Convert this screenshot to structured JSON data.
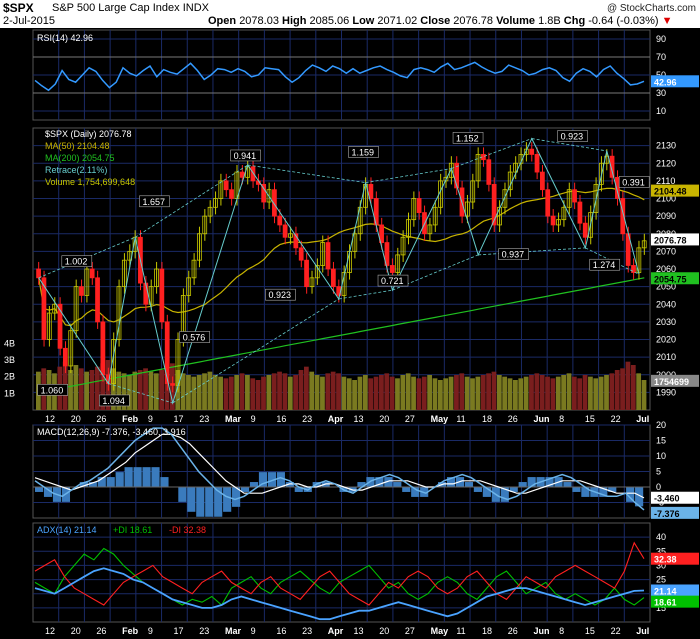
{
  "header": {
    "symbol": "$SPX",
    "name": "S&P 500 Large Cap Index",
    "exchange": "INDX",
    "date": "2-Jul-2015",
    "open_label": "Open",
    "open": "2078.03",
    "high_label": "High",
    "high": "2085.06",
    "low_label": "Low",
    "low": "2071.02",
    "close_label": "Close",
    "close": "2076.78",
    "volume_label": "Volume",
    "volume": "1.8B",
    "chg_label": "Chg",
    "chg": "-0.64 (-0.03%)",
    "watermark": "@ StockCharts.com"
  },
  "colors": {
    "up": "#c8c800",
    "down": "#ff2020",
    "ma50": "#c8b400",
    "ma200": "#20c020",
    "rsi": "#3399ff",
    "macd": "#6bb3e8",
    "signal": "#ffffff",
    "histogram": "#3a7bbd",
    "adx": "#4aa3ff",
    "plusdi": "#00c000",
    "minusdi": "#ff2020",
    "trend": "#66cccc",
    "grid": "#1a2a66"
  },
  "chart_data": [
    {
      "type": "line",
      "panel": "rsi",
      "legend": "RSI(14) 42.96",
      "last_label": "42.96",
      "ylim": [
        0,
        100
      ],
      "y_ticks": [
        10,
        30,
        50,
        70,
        90
      ],
      "series": [
        {
          "values": [
            44,
            38,
            33,
            40,
            55,
            45,
            42,
            50,
            58,
            54,
            44,
            36,
            42,
            58,
            52,
            49,
            55,
            60,
            48,
            56,
            53,
            51,
            57,
            63,
            55,
            45,
            50,
            57,
            56,
            53,
            57,
            54,
            48,
            50,
            58,
            57,
            56,
            48,
            42,
            47,
            55,
            61,
            58,
            54,
            60,
            57,
            52,
            57,
            52,
            55,
            58,
            60,
            56,
            53,
            49,
            47,
            56,
            58,
            56,
            53,
            59,
            63,
            56,
            58,
            61,
            64,
            59,
            55,
            52,
            54,
            61,
            58,
            55,
            50,
            52,
            56,
            58,
            55,
            47,
            43,
            52,
            57,
            54,
            48,
            56,
            60,
            52,
            46,
            39,
            40,
            43
          ]
        }
      ]
    },
    {
      "type": "candlestick",
      "panel": "price",
      "legend": {
        "price": "$SPX (Daily) 2076.78",
        "ma50": "MA(50) 2104.48",
        "ma200": "MA(200) 2054.75",
        "retrace": "Retrace(2.11%)",
        "volume": "Volume 1,754,699,648"
      },
      "ylim": [
        1980,
        2140
      ],
      "y_ticks": [
        1990,
        2000,
        2010,
        2020,
        2030,
        2040,
        2050,
        2060,
        2070,
        2080,
        2090,
        2100,
        2110,
        2120,
        2130
      ],
      "price_boxes": {
        "ma50": "2104.48",
        "close": "2076.78",
        "ma200": "2054.75",
        "volume": "1754699"
      },
      "volume_ticks": [
        "1B",
        "2B",
        "3B",
        "4B"
      ],
      "x_labels": [
        "12",
        "20",
        "26",
        "Feb",
        "9",
        "17",
        "23",
        "Mar",
        "9",
        "16",
        "23",
        "Apr",
        "13",
        "20",
        "27",
        "May",
        "11",
        "18",
        "26",
        "Jun",
        "8",
        "15",
        "22",
        "Jul"
      ],
      "close": [
        2055,
        2020,
        2035,
        2040,
        2015,
        2005,
        2025,
        2050,
        2045,
        2060,
        2055,
        2030,
        2000,
        1995,
        2020,
        2050,
        2065,
        2070,
        2078,
        2052,
        2040,
        2050,
        2060,
        2030,
        1995,
        1994,
        2020,
        2045,
        2055,
        2065,
        2080,
        2090,
        2095,
        2100,
        2110,
        2105,
        2100,
        2115,
        2112,
        2118,
        2110,
        2108,
        2098,
        2105,
        2090,
        2085,
        2078,
        2080,
        2072,
        2065,
        2050,
        2055,
        2062,
        2075,
        2060,
        2050,
        2045,
        2058,
        2070,
        2080,
        2095,
        2108,
        2100,
        2085,
        2075,
        2062,
        2058,
        2068,
        2078,
        2088,
        2100,
        2092,
        2080,
        2085,
        2095,
        2110,
        2112,
        2120,
        2106,
        2090,
        2098,
        2110,
        2125,
        2122,
        2108,
        2085,
        2095,
        2105,
        2115,
        2120,
        2125,
        2128,
        2125,
        2115,
        2105,
        2090,
        2085,
        2088,
        2095,
        2105,
        2098,
        2086,
        2078,
        2092,
        2108,
        2120,
        2124,
        2112,
        2100,
        2080,
        2062,
        2058,
        2072,
        2076
      ],
      "volume_billions": [
        2.3,
        2.5,
        2.4,
        2.2,
        2.6,
        2.9,
        2.4,
        2.7,
        2.5,
        2.3,
        2.4,
        2.6,
        2.8,
        3.0,
        2.5,
        2.3,
        2.2,
        2.1,
        2.3,
        2.4,
        2.5,
        2.3,
        2.2,
        2.4,
        2.6,
        2.8,
        2.4,
        2.2,
        2.1,
        2.0,
        2.1,
        2.2,
        2.3,
        2.1,
        2.0,
        1.9,
        2.0,
        2.1,
        2.2,
        2.1,
        1.9,
        1.8,
        2.0,
        2.1,
        2.2,
        2.3,
        2.2,
        2.0,
        2.1,
        2.4,
        2.6,
        2.3,
        2.1,
        2.0,
        2.2,
        2.3,
        2.2,
        2.0,
        1.9,
        1.8,
        2.0,
        2.1,
        1.9,
        2.0,
        2.1,
        2.2,
        2.0,
        1.9,
        2.1,
        2.2,
        2.0,
        1.9,
        2.0,
        2.1,
        1.9,
        1.8,
        1.9,
        2.0,
        2.1,
        2.2,
        2.0,
        1.9,
        2.0,
        2.1,
        2.2,
        2.3,
        2.1,
        2.0,
        1.9,
        1.8,
        1.9,
        2.0,
        2.1,
        2.2,
        2.1,
        2.0,
        1.9,
        2.0,
        2.1,
        2.2,
        2.0,
        1.9,
        2.1,
        2.0,
        1.9,
        2.0,
        2.1,
        2.2,
        2.4,
        2.5,
        2.9,
        2.7,
        2.2,
        1.8
      ],
      "zigzag": [
        {
          "i": 0,
          "v": 2055
        },
        {
          "i": 13,
          "v": 1995
        },
        {
          "i": 18,
          "v": 2078
        },
        {
          "i": 25,
          "v": 1984
        },
        {
          "i": 39,
          "v": 2119
        },
        {
          "i": 56,
          "v": 2043
        },
        {
          "i": 61,
          "v": 2109
        },
        {
          "i": 66,
          "v": 2048
        },
        {
          "i": 77,
          "v": 2117
        },
        {
          "i": 82,
          "v": 2068
        },
        {
          "i": 92,
          "v": 2134
        },
        {
          "i": 102,
          "v": 2072
        },
        {
          "i": 106,
          "v": 2127
        },
        {
          "i": 112,
          "v": 2057
        }
      ],
      "zigzag_labels": [
        {
          "text": "1.060",
          "i": 1,
          "v": 1990
        },
        {
          "text": "1.002",
          "i": 10,
          "v": 2063
        },
        {
          "text": "1.094",
          "i": 24,
          "v": 1984
        },
        {
          "text": "0.576",
          "i": 54,
          "v": 2020
        },
        {
          "text": "1.657",
          "i": 39,
          "v": 2097
        },
        {
          "text": "0.941",
          "i": 73,
          "v": 2123
        },
        {
          "text": "0.923",
          "i": 86,
          "v": 2044
        },
        {
          "text": "1.159",
          "i": 117,
          "v": 2125
        },
        {
          "text": "0.721",
          "i": 128,
          "v": 2052
        },
        {
          "text": "1.152",
          "i": 156,
          "v": 2133
        },
        {
          "text": "0.937",
          "i": 173,
          "v": 2067
        },
        {
          "text": "0.923",
          "i": 195,
          "v": 2134
        },
        {
          "text": "1.274",
          "i": 207,
          "v": 2061
        },
        {
          "text": "0.391",
          "i": 218,
          "v": 2108
        }
      ]
    },
    {
      "type": "line",
      "panel": "macd",
      "legend": "MACD(12,26,9) -7.376, -3.460, 3.916",
      "last_labels": [
        "-3.460",
        "-7.376"
      ],
      "ylim": [
        -10,
        20
      ],
      "y_ticks": [
        -5,
        0,
        5,
        10,
        15,
        20
      ],
      "series": [
        {
          "name": "MACD",
          "values": [
            2,
            0,
            -2,
            -3,
            -1,
            1,
            2,
            4,
            6,
            9,
            12,
            15,
            17,
            19,
            19,
            17,
            13,
            9,
            5,
            2,
            -1,
            -3,
            -4,
            -3,
            -1,
            1,
            2,
            3,
            2,
            0,
            -1,
            1,
            2,
            1,
            -1,
            -2,
            0,
            2,
            3,
            4,
            3,
            1,
            -1,
            -2,
            0,
            2,
            3,
            4,
            3,
            1,
            -1,
            -3,
            -4,
            -3,
            -1,
            1,
            2,
            3,
            4,
            3,
            1,
            -1,
            -2,
            -3,
            -3,
            -2,
            -5,
            -7.4
          ]
        },
        {
          "name": "Signal",
          "values": [
            3,
            2,
            1,
            0,
            -1,
            0,
            1,
            2,
            4,
            6,
            8,
            11,
            13,
            15,
            17,
            17,
            16,
            14,
            11,
            8,
            5,
            2,
            0,
            -2,
            -2,
            -2,
            -1,
            0,
            1,
            1,
            0,
            0,
            1,
            1,
            0,
            -1,
            -1,
            0,
            1,
            2,
            2,
            2,
            1,
            0,
            0,
            1,
            1,
            2,
            2,
            2,
            1,
            0,
            -1,
            -2,
            -2,
            -1,
            0,
            1,
            2,
            2,
            2,
            1,
            0,
            -1,
            -2,
            -2,
            -2,
            -3.5
          ]
        }
      ]
    },
    {
      "type": "line",
      "panel": "adx",
      "legend": {
        "adx": "ADX(14) 21.14",
        "plusdi": "+DI 18.61",
        "minusdi": "-DI 32.38"
      },
      "last_labels": [
        "32.38",
        "21.14",
        "18.61"
      ],
      "ylim": [
        10,
        45
      ],
      "y_ticks": [
        15,
        20,
        25,
        30,
        35,
        40
      ],
      "x_labels": [
        "12",
        "20",
        "26",
        "Feb",
        "9",
        "17",
        "23",
        "Mar",
        "9",
        "16",
        "23",
        "Apr",
        "13",
        "20",
        "27",
        "May",
        "11",
        "18",
        "26",
        "Jun",
        "8",
        "15",
        "22",
        "Jul"
      ],
      "series": [
        {
          "name": "ADX",
          "values": [
            22,
            21,
            20,
            22,
            24,
            26,
            28,
            29,
            28,
            27,
            25,
            24,
            22,
            20,
            18,
            17,
            16,
            15,
            15,
            16,
            18,
            19,
            18,
            17,
            16,
            15,
            14,
            13,
            12,
            11,
            11,
            12,
            13,
            14,
            14,
            15,
            16,
            17,
            16,
            15,
            14,
            13,
            12,
            13,
            15,
            17,
            19,
            20,
            21,
            22,
            22,
            21,
            20,
            19,
            18,
            17,
            16,
            17,
            18,
            19,
            20,
            21,
            21.14
          ]
        },
        {
          "name": "+DI",
          "values": [
            24,
            22,
            20,
            26,
            30,
            34,
            32,
            36,
            34,
            30,
            27,
            24,
            22,
            20,
            18,
            16,
            18,
            17,
            19,
            16,
            22,
            24,
            26,
            22,
            20,
            24,
            26,
            28,
            25,
            22,
            20,
            24,
            26,
            28,
            30,
            26,
            22,
            24,
            20,
            18,
            20,
            24,
            26,
            24,
            20,
            18,
            22,
            26,
            28,
            24,
            20,
            22,
            24,
            20,
            18,
            20,
            18,
            16,
            18,
            22,
            18,
            16,
            18.61
          ]
        },
        {
          "name": "-DI",
          "values": [
            28,
            30,
            32,
            26,
            22,
            20,
            18,
            16,
            20,
            24,
            26,
            28,
            30,
            26,
            24,
            22,
            20,
            24,
            26,
            28,
            24,
            22,
            20,
            24,
            26,
            22,
            20,
            18,
            22,
            26,
            28,
            24,
            20,
            18,
            16,
            20,
            24,
            22,
            26,
            28,
            26,
            22,
            20,
            22,
            26,
            28,
            24,
            20,
            18,
            22,
            26,
            24,
            22,
            26,
            28,
            30,
            28,
            26,
            24,
            22,
            28,
            38,
            32.38
          ]
        }
      ]
    }
  ]
}
